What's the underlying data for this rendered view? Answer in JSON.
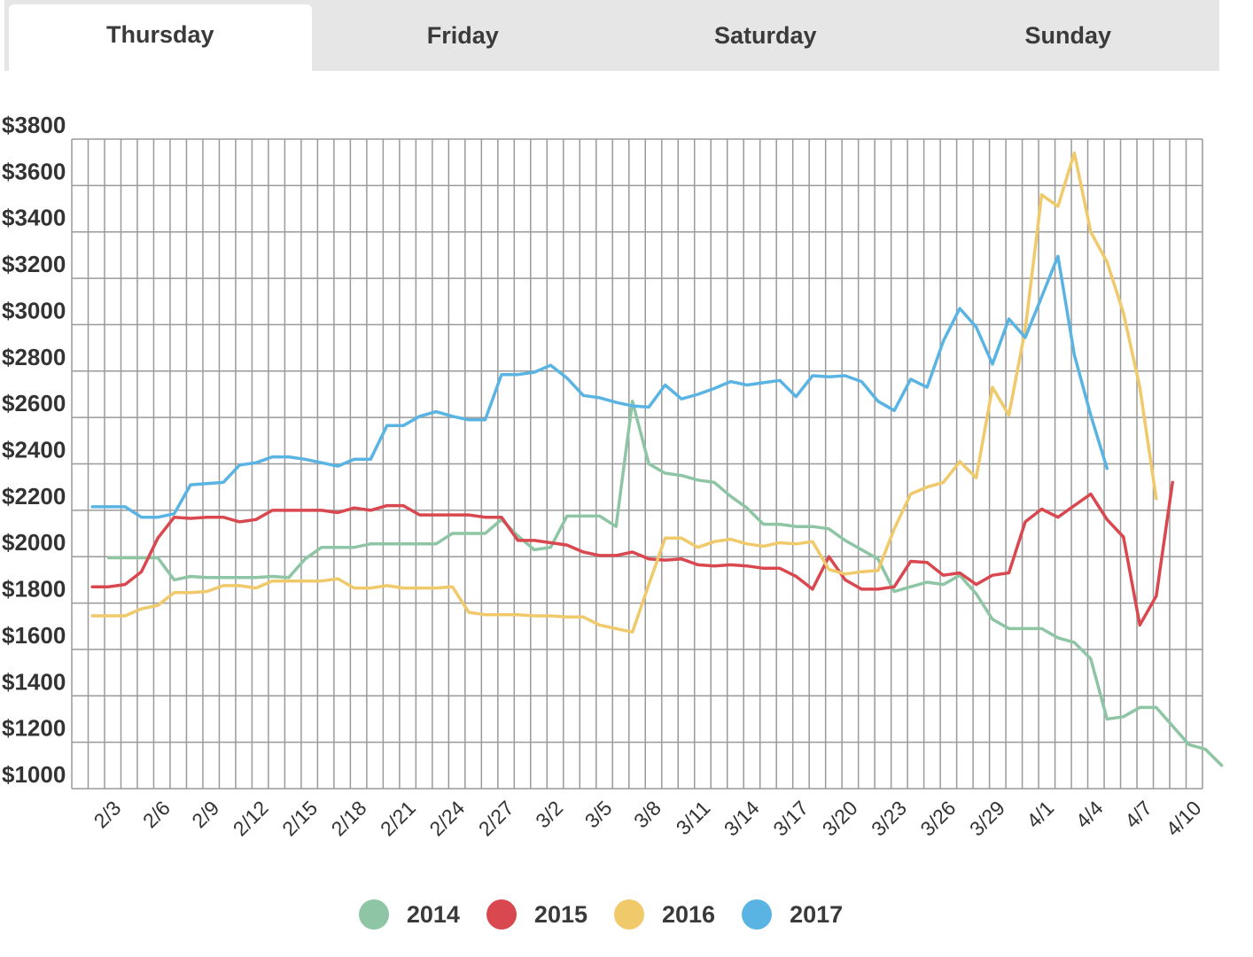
{
  "tabs": [
    {
      "label": "Thursday",
      "active": true
    },
    {
      "label": "Friday",
      "active": false
    },
    {
      "label": "Saturday",
      "active": false
    },
    {
      "label": "Sunday",
      "active": false
    }
  ],
  "chart_data": {
    "type": "line",
    "title": "",
    "xlabel": "",
    "ylabel": "",
    "ylim": [
      1000,
      3800
    ],
    "y_ticks": [
      1000,
      1200,
      1400,
      1600,
      1800,
      2000,
      2200,
      2400,
      2600,
      2800,
      3000,
      3200,
      3400,
      3600,
      3800
    ],
    "y_tick_labels": [
      "$1000",
      "$1200",
      "$1400",
      "$1600",
      "$1800",
      "$2000",
      "$2200",
      "$2400",
      "$2600",
      "$2800",
      "$3000",
      "$3200",
      "$3400",
      "$3600",
      "$3800"
    ],
    "x_tick_labels": [
      "2/3",
      "2/6",
      "2/9",
      "2/12",
      "2/15",
      "2/18",
      "2/21",
      "2/24",
      "2/27",
      "3/2",
      "3/5",
      "3/8",
      "3/11",
      "3/14",
      "3/17",
      "3/20",
      "3/23",
      "3/26",
      "3/29",
      "4/1",
      "4/4",
      "4/7",
      "4/10"
    ],
    "grid": true,
    "legend": "bottom-center",
    "series": [
      {
        "name": "2014",
        "color": "#8ec5a4",
        "values": [
          [
            1,
            1995
          ],
          [
            2,
            1995
          ],
          [
            3,
            1995
          ],
          [
            4,
            1995
          ],
          [
            5,
            1900
          ],
          [
            6,
            1915
          ],
          [
            7,
            1910
          ],
          [
            8,
            1910
          ],
          [
            9,
            1910
          ],
          [
            10,
            1910
          ],
          [
            11,
            1915
          ],
          [
            12,
            1910
          ],
          [
            13,
            1990
          ],
          [
            14,
            2040
          ],
          [
            15,
            2040
          ],
          [
            16,
            2040
          ],
          [
            17,
            2055
          ],
          [
            18,
            2055
          ],
          [
            19,
            2055
          ],
          [
            20,
            2055
          ],
          [
            21,
            2055
          ],
          [
            22,
            2100
          ],
          [
            23,
            2100
          ],
          [
            24,
            2100
          ],
          [
            25,
            2160
          ],
          [
            26,
            2090
          ],
          [
            27,
            2030
          ],
          [
            28,
            2040
          ],
          [
            29,
            2175
          ],
          [
            30,
            2175
          ],
          [
            31,
            2175
          ],
          [
            32,
            2130
          ],
          [
            33,
            2670
          ],
          [
            34,
            2400
          ],
          [
            35,
            2360
          ],
          [
            36,
            2350
          ],
          [
            37,
            2330
          ],
          [
            38,
            2320
          ],
          [
            39,
            2260
          ],
          [
            40,
            2210
          ],
          [
            41,
            2140
          ],
          [
            42,
            2140
          ],
          [
            43,
            2130
          ],
          [
            44,
            2130
          ],
          [
            45,
            2120
          ],
          [
            46,
            2070
          ],
          [
            47,
            2030
          ],
          [
            48,
            1990
          ],
          [
            49,
            1850
          ],
          [
            50,
            1870
          ],
          [
            51,
            1890
          ],
          [
            52,
            1880
          ],
          [
            53,
            1920
          ],
          [
            54,
            1840
          ],
          [
            55,
            1730
          ],
          [
            56,
            1690
          ],
          [
            57,
            1690
          ],
          [
            58,
            1690
          ],
          [
            59,
            1650
          ],
          [
            60,
            1630
          ],
          [
            61,
            1560
          ],
          [
            62,
            1300
          ],
          [
            63,
            1310
          ],
          [
            64,
            1350
          ],
          [
            65,
            1350
          ],
          [
            66,
            1270
          ],
          [
            67,
            1190
          ],
          [
            68,
            1170
          ],
          [
            69,
            1100
          ]
        ]
      },
      {
        "name": "2015",
        "color": "#d9474f",
        "values": [
          [
            0,
            1870
          ],
          [
            1,
            1870
          ],
          [
            2,
            1880
          ],
          [
            3,
            1935
          ],
          [
            4,
            2080
          ],
          [
            5,
            2170
          ],
          [
            6,
            2165
          ],
          [
            7,
            2170
          ],
          [
            8,
            2170
          ],
          [
            9,
            2150
          ],
          [
            10,
            2160
          ],
          [
            11,
            2200
          ],
          [
            12,
            2200
          ],
          [
            13,
            2200
          ],
          [
            14,
            2200
          ],
          [
            15,
            2190
          ],
          [
            16,
            2210
          ],
          [
            17,
            2200
          ],
          [
            18,
            2220
          ],
          [
            19,
            2220
          ],
          [
            20,
            2180
          ],
          [
            21,
            2180
          ],
          [
            22,
            2180
          ],
          [
            23,
            2180
          ],
          [
            24,
            2170
          ],
          [
            25,
            2170
          ],
          [
            26,
            2070
          ],
          [
            27,
            2070
          ],
          [
            28,
            2060
          ],
          [
            29,
            2050
          ],
          [
            30,
            2020
          ],
          [
            31,
            2005
          ],
          [
            32,
            2005
          ],
          [
            33,
            2020
          ],
          [
            34,
            1990
          ],
          [
            35,
            1985
          ],
          [
            36,
            1990
          ],
          [
            37,
            1965
          ],
          [
            38,
            1960
          ],
          [
            39,
            1965
          ],
          [
            40,
            1960
          ],
          [
            41,
            1950
          ],
          [
            42,
            1950
          ],
          [
            43,
            1915
          ],
          [
            44,
            1860
          ],
          [
            45,
            2000
          ],
          [
            46,
            1900
          ],
          [
            47,
            1860
          ],
          [
            48,
            1860
          ],
          [
            49,
            1870
          ],
          [
            50,
            1980
          ],
          [
            51,
            1975
          ],
          [
            52,
            1920
          ],
          [
            53,
            1930
          ],
          [
            54,
            1880
          ],
          [
            55,
            1920
          ],
          [
            56,
            1930
          ],
          [
            57,
            2150
          ],
          [
            58,
            2205
          ],
          [
            59,
            2170
          ],
          [
            60,
            2220
          ],
          [
            61,
            2270
          ],
          [
            62,
            2160
          ],
          [
            63,
            2085
          ],
          [
            64,
            1705
          ],
          [
            65,
            1830
          ],
          [
            66,
            2320
          ]
        ]
      },
      {
        "name": "2016",
        "color": "#f0c96a",
        "values": [
          [
            0,
            1745
          ],
          [
            1,
            1745
          ],
          [
            2,
            1745
          ],
          [
            3,
            1775
          ],
          [
            4,
            1790
          ],
          [
            5,
            1845
          ],
          [
            6,
            1845
          ],
          [
            7,
            1850
          ],
          [
            8,
            1875
          ],
          [
            9,
            1875
          ],
          [
            10,
            1865
          ],
          [
            11,
            1895
          ],
          [
            12,
            1895
          ],
          [
            13,
            1895
          ],
          [
            14,
            1895
          ],
          [
            15,
            1905
          ],
          [
            16,
            1865
          ],
          [
            17,
            1865
          ],
          [
            18,
            1875
          ],
          [
            19,
            1865
          ],
          [
            20,
            1865
          ],
          [
            21,
            1865
          ],
          [
            22,
            1870
          ],
          [
            23,
            1760
          ],
          [
            24,
            1750
          ],
          [
            25,
            1750
          ],
          [
            26,
            1750
          ],
          [
            27,
            1745
          ],
          [
            28,
            1745
          ],
          [
            29,
            1740
          ],
          [
            30,
            1740
          ],
          [
            31,
            1705
          ],
          [
            32,
            1690
          ],
          [
            33,
            1675
          ],
          [
            34,
            1880
          ],
          [
            35,
            2080
          ],
          [
            36,
            2080
          ],
          [
            37,
            2040
          ],
          [
            38,
            2065
          ],
          [
            39,
            2075
          ],
          [
            40,
            2055
          ],
          [
            41,
            2045
          ],
          [
            42,
            2060
          ],
          [
            43,
            2055
          ],
          [
            44,
            2065
          ],
          [
            45,
            1945
          ],
          [
            46,
            1925
          ],
          [
            47,
            1935
          ],
          [
            48,
            1940
          ],
          [
            49,
            2120
          ],
          [
            50,
            2270
          ],
          [
            51,
            2300
          ],
          [
            52,
            2320
          ],
          [
            53,
            2410
          ],
          [
            54,
            2340
          ],
          [
            55,
            2730
          ],
          [
            56,
            2610
          ],
          [
            57,
            2980
          ],
          [
            58,
            3560
          ],
          [
            59,
            3510
          ],
          [
            60,
            3740
          ],
          [
            61,
            3400
          ],
          [
            62,
            3270
          ],
          [
            63,
            3050
          ],
          [
            64,
            2730
          ],
          [
            65,
            2250
          ]
        ]
      },
      {
        "name": "2017",
        "color": "#5ab4e3",
        "values": [
          [
            0,
            2215
          ],
          [
            1,
            2215
          ],
          [
            2,
            2215
          ],
          [
            3,
            2170
          ],
          [
            4,
            2170
          ],
          [
            5,
            2185
          ],
          [
            6,
            2310
          ],
          [
            7,
            2315
          ],
          [
            8,
            2320
          ],
          [
            9,
            2395
          ],
          [
            10,
            2405
          ],
          [
            11,
            2430
          ],
          [
            12,
            2430
          ],
          [
            13,
            2420
          ],
          [
            14,
            2405
          ],
          [
            15,
            2390
          ],
          [
            16,
            2420
          ],
          [
            17,
            2420
          ],
          [
            18,
            2565
          ],
          [
            19,
            2565
          ],
          [
            20,
            2605
          ],
          [
            21,
            2625
          ],
          [
            22,
            2605
          ],
          [
            23,
            2590
          ],
          [
            24,
            2590
          ],
          [
            25,
            2785
          ],
          [
            26,
            2785
          ],
          [
            27,
            2795
          ],
          [
            28,
            2825
          ],
          [
            29,
            2770
          ],
          [
            30,
            2695
          ],
          [
            31,
            2685
          ],
          [
            32,
            2665
          ],
          [
            33,
            2650
          ],
          [
            34,
            2645
          ],
          [
            35,
            2740
          ],
          [
            36,
            2680
          ],
          [
            37,
            2700
          ],
          [
            38,
            2725
          ],
          [
            39,
            2755
          ],
          [
            40,
            2740
          ],
          [
            41,
            2750
          ],
          [
            42,
            2760
          ],
          [
            43,
            2690
          ],
          [
            44,
            2780
          ],
          [
            45,
            2775
          ],
          [
            46,
            2780
          ],
          [
            47,
            2755
          ],
          [
            48,
            2670
          ],
          [
            49,
            2630
          ],
          [
            50,
            2765
          ],
          [
            51,
            2730
          ],
          [
            52,
            2930
          ],
          [
            53,
            3070
          ],
          [
            54,
            2990
          ],
          [
            55,
            2830
          ],
          [
            56,
            3025
          ],
          [
            57,
            2945
          ],
          [
            58,
            3120
          ],
          [
            59,
            3295
          ],
          [
            60,
            2870
          ],
          [
            61,
            2610
          ],
          [
            62,
            2380
          ]
        ]
      }
    ]
  }
}
